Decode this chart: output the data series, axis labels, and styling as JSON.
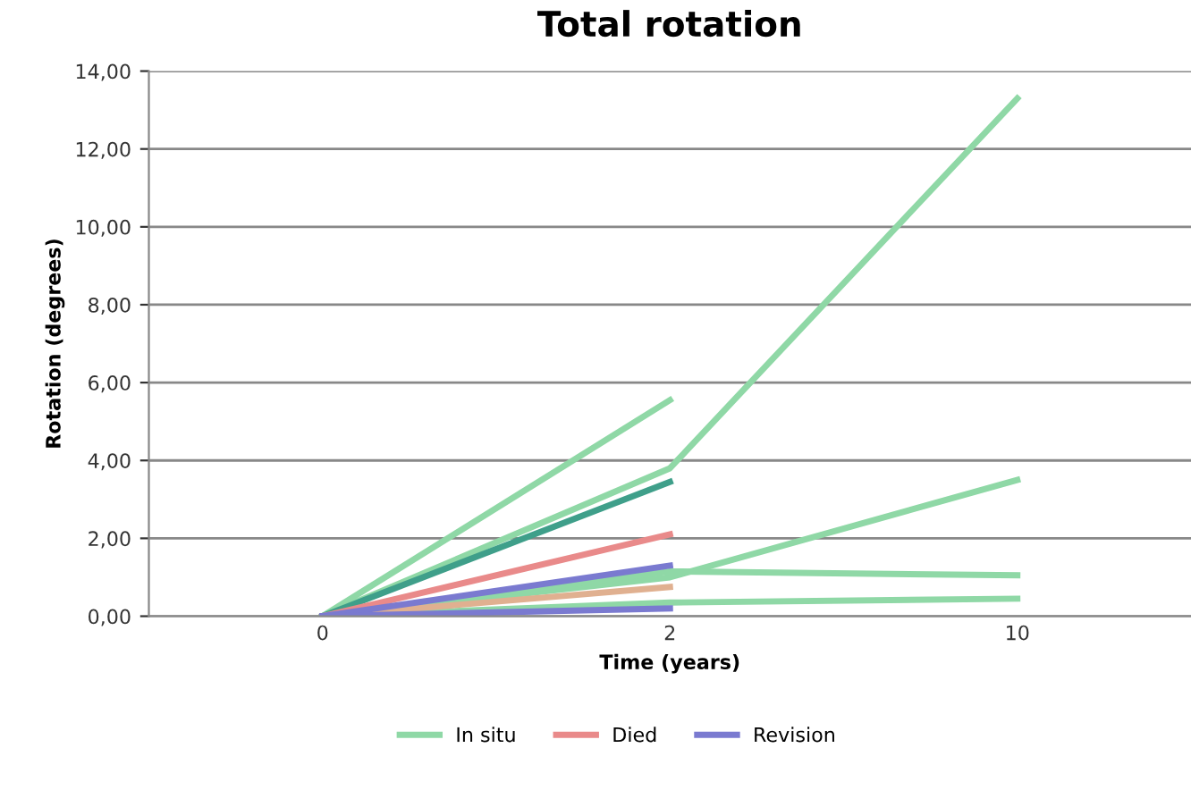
{
  "chart_data": {
    "type": "line",
    "title": "Total rotation",
    "xlabel": "Time (years)",
    "ylabel": "Rotation (degrees)",
    "categories": [
      "0",
      "2",
      "10"
    ],
    "series": [
      {
        "name": "In situ",
        "color": "#8fd8a6",
        "values": [
          0,
          5.55,
          null
        ]
      },
      {
        "color": "#8fd8a6",
        "values": [
          0,
          3.8,
          13.3
        ]
      },
      {
        "color": "#8fd8a6",
        "values": [
          0,
          1.0,
          3.5
        ]
      },
      {
        "color": "#8fd8a6",
        "values": [
          0,
          1.15,
          1.05
        ]
      },
      {
        "color": "#8fd8a6",
        "values": [
          0,
          0.35,
          0.45
        ]
      },
      {
        "color": "#3f9f8a",
        "values": [
          0,
          3.45,
          null
        ]
      },
      {
        "name": "Died",
        "color": "#e98a8a",
        "values": [
          0,
          2.1,
          null
        ]
      },
      {
        "color": "#e0b090",
        "values": [
          0,
          0.75,
          null
        ]
      },
      {
        "name": "Revision",
        "color": "#7a7ad0",
        "values": [
          0,
          1.3,
          null
        ]
      },
      {
        "color": "#7a7ad0",
        "values": [
          0,
          0.2,
          null
        ]
      }
    ],
    "ylim": [
      0,
      14
    ],
    "yticks": [
      {
        "value": 0,
        "label": "0,00"
      },
      {
        "value": 2,
        "label": "2,00"
      },
      {
        "value": 4,
        "label": "4,00"
      },
      {
        "value": 6,
        "label": "6,00"
      },
      {
        "value": 8,
        "label": "8,00"
      },
      {
        "value": 10,
        "label": "10,00"
      },
      {
        "value": 12,
        "label": "12,00"
      },
      {
        "value": 14,
        "label": "14,00"
      }
    ],
    "grid": "y",
    "legend": "bottom",
    "marker": "none",
    "line_style": "solid"
  }
}
